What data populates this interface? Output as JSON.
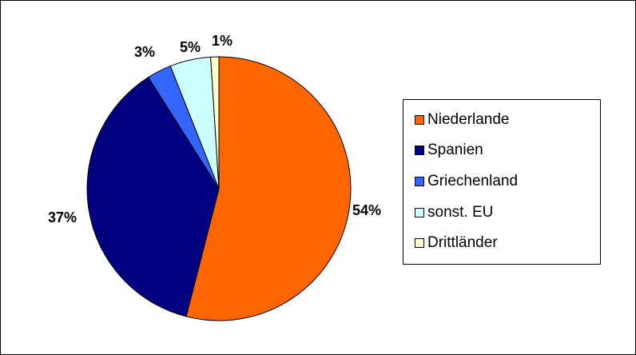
{
  "chart_data": {
    "type": "pie",
    "slices": [
      {
        "label": "Niederlande",
        "value": 54,
        "display": "54%",
        "color": "#FF6600"
      },
      {
        "label": "Spanien",
        "value": 37,
        "display": "37%",
        "color": "#000080"
      },
      {
        "label": "Griechenland",
        "value": 3,
        "display": "3%",
        "color": "#3366FF"
      },
      {
        "label": "sonst. EU",
        "value": 5,
        "display": "5%",
        "color": "#CCFFFF"
      },
      {
        "label": "Drittländer",
        "value": 1,
        "display": "1%",
        "color": "#FFFFCC"
      }
    ],
    "start": "12 o'clock",
    "direction": "clockwise",
    "legend_position": "right"
  }
}
